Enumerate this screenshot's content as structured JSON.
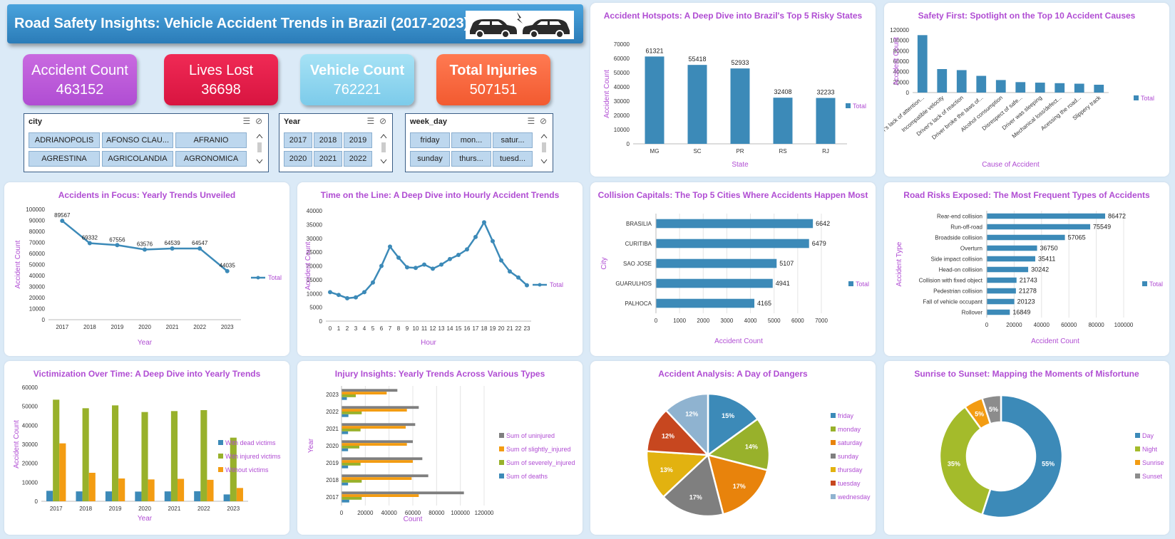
{
  "header": {
    "title": "Road Safety Insights: Vehicle Accident Trends in Brazil (2017-2023)"
  },
  "kpis": [
    {
      "label": "Accident Count",
      "value": "463152",
      "color": "#c25ed8"
    },
    {
      "label": "Lives Lost",
      "value": "36698",
      "color": "#e81c4a"
    },
    {
      "label": "Vehicle Count",
      "value": "762221",
      "color": "#8fd6f0"
    },
    {
      "label": "Total Injuries",
      "value": "507151",
      "color": "#fb6a42"
    }
  ],
  "slicers": {
    "city": {
      "title": "city",
      "items": [
        "ADRIANOPOLIS",
        "AFONSO CLAU...",
        "AFRANIO",
        "AGRESTINA",
        "AGRICOLANDIA",
        "AGRONOMICA"
      ]
    },
    "year": {
      "title": "Year",
      "items": [
        "2017",
        "2018",
        "2019",
        "2020",
        "2021",
        "2022"
      ]
    },
    "weekday": {
      "title": "week_day",
      "items": [
        "friday",
        "mon...",
        "satur...",
        "sunday",
        "thurs...",
        "tuesd..."
      ]
    }
  },
  "colors": {
    "blue": "#3c8ab8",
    "green": "#98b12b",
    "orange": "#f39c12",
    "gray": "#7f7f7f",
    "title": "#b04dd3"
  },
  "charts": {
    "states": {
      "title": "Accident Hotspots: A Deep Dive into Brazil's Top 5 Risky States",
      "xlabel": "State",
      "ylabel": "Accident Count",
      "legend": "Total"
    },
    "causes": {
      "title": "Safety First: Spotlight on the Top 10 Accident Causes",
      "xlabel": "Cause of Accident",
      "ylabel": "Accident Count",
      "legend": "Total"
    },
    "yearly": {
      "title": "Accidents in Focus: Yearly Trends Unveiled",
      "xlabel": "Year",
      "ylabel": "Accident Count",
      "legend": "Total"
    },
    "hourly": {
      "title": "Time on the Line: A Deep Dive into Hourly Accident Trends",
      "xlabel": "Hour",
      "ylabel": "Accident Count",
      "legend": "Total"
    },
    "cities": {
      "title": "Collision Capitals: The Top 5 Cities Where Accidents Happen Most",
      "xlabel": "Accident Count",
      "ylabel": "City",
      "legend": "Total"
    },
    "types": {
      "title": "Road Risks Exposed: The Most Frequent Types of Accidents",
      "xlabel": "Accident Count",
      "ylabel": "Accident Type",
      "legend": "Total"
    },
    "victims": {
      "title": "Victimization Over Time: A Deep Dive into Yearly Trends",
      "xlabel": "Year",
      "ylabel": "Accident Count"
    },
    "injury": {
      "title": "Injury Insights: Yearly Trends Across Various Types",
      "xlabel": "Count",
      "ylabel": "Year"
    },
    "dayofweek": {
      "title": "Accident Analysis: A Day of Dangers"
    },
    "phase": {
      "title": "Sunrise to Sunset: Mapping the Moments of Misfortune"
    }
  },
  "chart_data": [
    {
      "id": "states",
      "type": "bar",
      "categories": [
        "MG",
        "SC",
        "PR",
        "RS",
        "RJ"
      ],
      "values": [
        61321,
        55418,
        52933,
        32408,
        32233
      ],
      "ylim": [
        0,
        70000
      ],
      "yticks": [
        0,
        10000,
        20000,
        30000,
        40000,
        50000,
        60000,
        70000
      ]
    },
    {
      "id": "causes",
      "type": "bar",
      "categories": [
        "Driver's lack of attention...",
        "Incompatible velocity",
        "Driver's lack of reaction",
        "Driver broke the laws of...",
        "Alcohol consumption",
        "Disrespect of safe...",
        "Driver was sleeping",
        "Mechanical loss/defect...",
        "Acessing the road...",
        "Slippery track"
      ],
      "values": [
        110000,
        45000,
        43000,
        32000,
        24000,
        20000,
        19000,
        18000,
        17000,
        15000
      ],
      "ylim": [
        0,
        120000
      ],
      "yticks": [
        0,
        20000,
        40000,
        60000,
        80000,
        100000,
        120000
      ]
    },
    {
      "id": "yearly",
      "type": "line",
      "categories": [
        "2017",
        "2018",
        "2019",
        "2020",
        "2021",
        "2022",
        "2023"
      ],
      "values": [
        89567,
        69332,
        67556,
        63576,
        64539,
        64547,
        44035
      ],
      "ylim": [
        0,
        100000
      ],
      "yticks": [
        0,
        10000,
        20000,
        30000,
        40000,
        50000,
        60000,
        70000,
        80000,
        90000,
        100000
      ]
    },
    {
      "id": "hourly",
      "type": "line",
      "categories": [
        "0",
        "1",
        "2",
        "3",
        "4",
        "5",
        "6",
        "7",
        "8",
        "9",
        "10",
        "11",
        "12",
        "13",
        "14",
        "15",
        "16",
        "17",
        "18",
        "19",
        "20",
        "21",
        "22",
        "23"
      ],
      "values": [
        10500,
        9500,
        8300,
        8600,
        10500,
        14000,
        20000,
        27000,
        23000,
        19500,
        19300,
        20500,
        19000,
        20500,
        22500,
        24000,
        26000,
        30500,
        35800,
        29000,
        22000,
        18000,
        15800,
        13000
      ],
      "ylim": [
        0,
        40000
      ],
      "yticks": [
        0,
        5000,
        10000,
        15000,
        20000,
        25000,
        30000,
        35000,
        40000
      ]
    },
    {
      "id": "cities",
      "type": "bar",
      "orientation": "horizontal",
      "categories": [
        "BRASILIA",
        "CURITIBA",
        "SAO JOSE",
        "GUARULHOS",
        "PALHOCA"
      ],
      "values": [
        6642,
        6479,
        5107,
        4941,
        4165
      ],
      "xlim": [
        0,
        7000
      ],
      "xticks": [
        0,
        1000,
        2000,
        3000,
        4000,
        5000,
        6000,
        7000
      ]
    },
    {
      "id": "types",
      "type": "bar",
      "orientation": "horizontal",
      "categories": [
        "Rear-end collision",
        "Run-off-road",
        "Broadside collision",
        "Overturn",
        "Side impact collision",
        "Head-on collision",
        "Collision with fixed object",
        "Pedestrian collision",
        "Fall of vehicle occupant",
        "Rollover"
      ],
      "values": [
        86472,
        75549,
        57065,
        36750,
        35411,
        30242,
        21743,
        21278,
        20123,
        16849
      ],
      "xlim": [
        0,
        100000
      ],
      "xticks": [
        0,
        20000,
        40000,
        60000,
        80000,
        100000
      ]
    },
    {
      "id": "victims",
      "type": "bar",
      "categories": [
        "2017",
        "2018",
        "2019",
        "2020",
        "2021",
        "2022",
        "2023"
      ],
      "series": [
        {
          "name": "With dead victims",
          "color": "#3c8ab8",
          "values": [
            5500,
            5200,
            5200,
            5100,
            5200,
            5300,
            3600
          ]
        },
        {
          "name": "With injured victims",
          "color": "#98b12b",
          "values": [
            53500,
            49000,
            50500,
            47000,
            47500,
            48000,
            33500
          ]
        },
        {
          "name": "Without victims",
          "color": "#f39c12",
          "values": [
            30500,
            15000,
            12000,
            11500,
            11800,
            11300,
            7000
          ]
        }
      ],
      "ylim": [
        0,
        60000
      ],
      "yticks": [
        0,
        10000,
        20000,
        30000,
        40000,
        50000,
        60000
      ]
    },
    {
      "id": "injury",
      "type": "bar",
      "orientation": "horizontal",
      "categories": [
        "2017",
        "2018",
        "2019",
        "2020",
        "2021",
        "2022",
        "2023"
      ],
      "series": [
        {
          "name": "Sum of uninjured",
          "color": "#7f7f7f",
          "values": [
            103000,
            73000,
            68000,
            60000,
            62000,
            65000,
            47000
          ]
        },
        {
          "name": "Sum of slightly_injured",
          "color": "#f39c12",
          "values": [
            65000,
            59000,
            60000,
            55000,
            54000,
            55000,
            38000
          ]
        },
        {
          "name": "Sum of severely_injured",
          "color": "#98b12b",
          "values": [
            17000,
            17000,
            16000,
            15000,
            16000,
            17000,
            12000
          ]
        },
        {
          "name": "Sum of deaths",
          "color": "#3c8ab8",
          "values": [
            6500,
            5500,
            5500,
            5500,
            5500,
            5800,
            4500
          ]
        }
      ],
      "xlim": [
        0,
        120000
      ],
      "xticks": [
        0,
        20000,
        40000,
        60000,
        80000,
        100000,
        120000
      ]
    },
    {
      "id": "dayofweek",
      "type": "pie",
      "labels": [
        "friday",
        "monday",
        "saturday",
        "sunday",
        "thursday",
        "tuesday",
        "wednesday"
      ],
      "values": [
        15,
        14,
        17,
        17,
        13,
        12,
        12
      ],
      "colors": [
        "#3c8ab8",
        "#98b12b",
        "#e8830c",
        "#7f7f7f",
        "#e2b210",
        "#c7471f",
        "#8fb3d0"
      ]
    },
    {
      "id": "phase",
      "type": "pie",
      "donut": true,
      "labels": [
        "Day",
        "Night",
        "Sunrise",
        "Sunset"
      ],
      "values": [
        55,
        35,
        5,
        5
      ],
      "colors": [
        "#3c8ab8",
        "#a4bb2b",
        "#f39c12",
        "#8c8c8c"
      ]
    }
  ]
}
